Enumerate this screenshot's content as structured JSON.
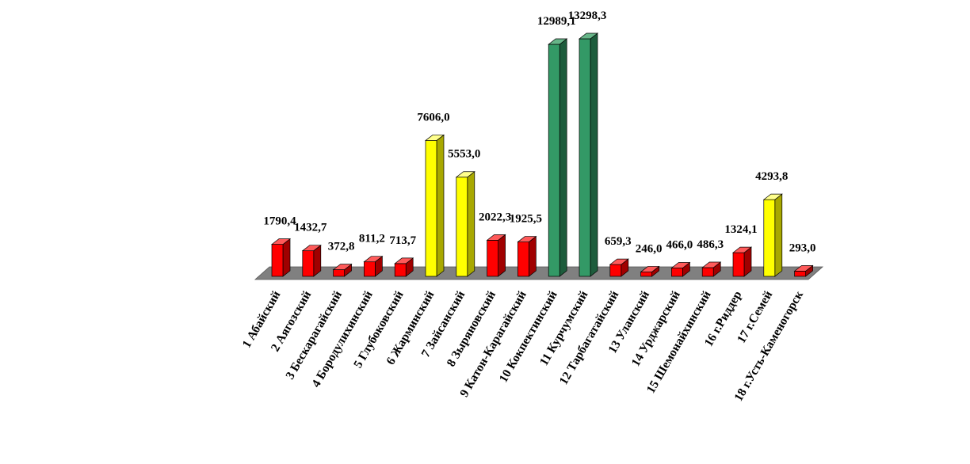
{
  "chart_data": {
    "type": "bar",
    "title": "",
    "xlabel": "",
    "ylabel": "",
    "ylim": [
      0,
      13298.3
    ],
    "grid": false,
    "legend": "none",
    "categories": [
      "1 Абайский",
      "2 Аягозский",
      "3 Бескарагайский",
      "4 Бородулихинский",
      "5 Глубоковский",
      "6 Жарминский",
      "7 Зайсанский",
      "8 Зыряновский",
      "9 Катон-Карагайский",
      "10 Кокпектинский",
      "11 Курчумский",
      "12 Тарбагатайский",
      "13 Уланский",
      "14 Урджарский",
      "15 Шемонайхинский",
      "16 г.Риддер",
      "17 г.Семей",
      "18 г.Усть-Каменогорск"
    ],
    "values": [
      1790.4,
      1432.7,
      372.8,
      811.2,
      713.7,
      7606.0,
      5553.0,
      2022.3,
      1925.5,
      12989.1,
      13298.3,
      659.3,
      246.0,
      466.0,
      486.3,
      1324.1,
      4293.8,
      293.0
    ],
    "value_labels": [
      "1790,4",
      "1432,7",
      "372,8",
      "811,2",
      "713,7",
      "7606,0",
      "5553,0",
      "2022,3",
      "1925,5",
      "12989,1",
      "13298,3",
      "659,3",
      "246,0",
      "466,0",
      "486,3",
      "1324,1",
      "4293,8",
      "293,0"
    ],
    "colors": [
      "red",
      "red",
      "red",
      "red",
      "red",
      "yellow",
      "yellow",
      "red",
      "red",
      "green",
      "green",
      "red",
      "red",
      "red",
      "red",
      "red",
      "yellow",
      "red"
    ],
    "palette": {
      "red": {
        "front": "#ff0000",
        "top": "#ff5a5a",
        "side": "#a00000"
      },
      "yellow": {
        "front": "#ffff00",
        "top": "#ffff8c",
        "side": "#a8a800"
      },
      "green": {
        "front": "#339966",
        "top": "#66b588",
        "side": "#1d5c3c"
      },
      "floor": "#808080",
      "floor_edge": "#555555"
    }
  }
}
